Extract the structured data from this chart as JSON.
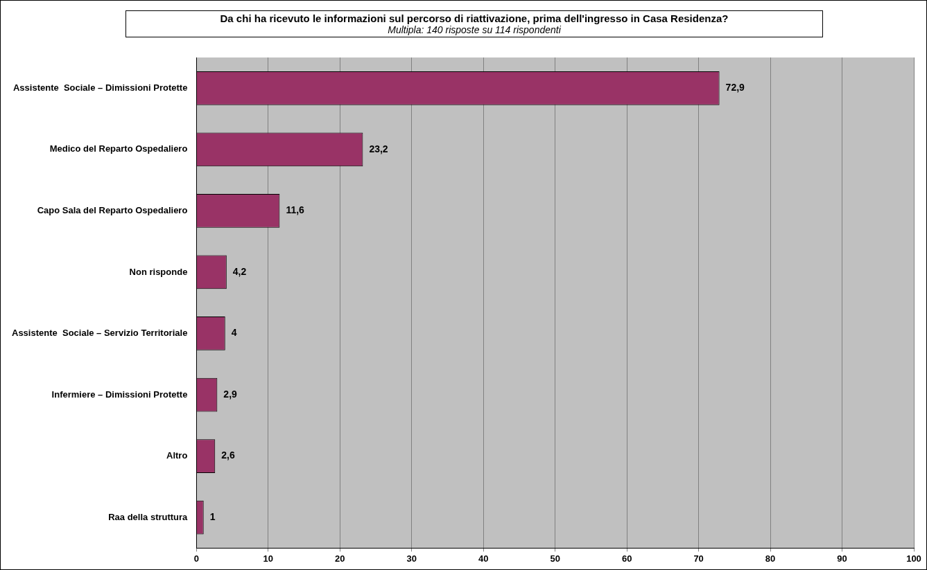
{
  "chart_data": {
    "type": "bar",
    "orientation": "horizontal",
    "title": "Da chi ha ricevuto le informazioni sul percorso di riattivazione, prima dell'ingresso in Casa Residenza?",
    "subtitle": "Multipla: 140 risposte su 114 rispondenti",
    "categories": [
      "Assistente  Sociale – Dimissioni Protette",
      "Medico del Reparto Ospedaliero",
      "Capo Sala del Reparto Ospedaliero",
      "Non risponde",
      "Assistente  Sociale – Servizio Territoriale",
      "Infermiere – Dimissioni Protette",
      "Altro",
      "Raa della struttura"
    ],
    "values": [
      72.9,
      23.2,
      11.6,
      4.2,
      4,
      2.9,
      2.6,
      1
    ],
    "value_labels": [
      "72,9",
      "23,2",
      "11,6",
      "4,2",
      "4",
      "2,9",
      "2,6",
      "1"
    ],
    "color": "#993366",
    "xlim": [
      0,
      100
    ],
    "xticks": [
      0,
      10,
      20,
      30,
      40,
      50,
      60,
      70,
      80,
      90,
      100
    ],
    "grid": "x"
  }
}
